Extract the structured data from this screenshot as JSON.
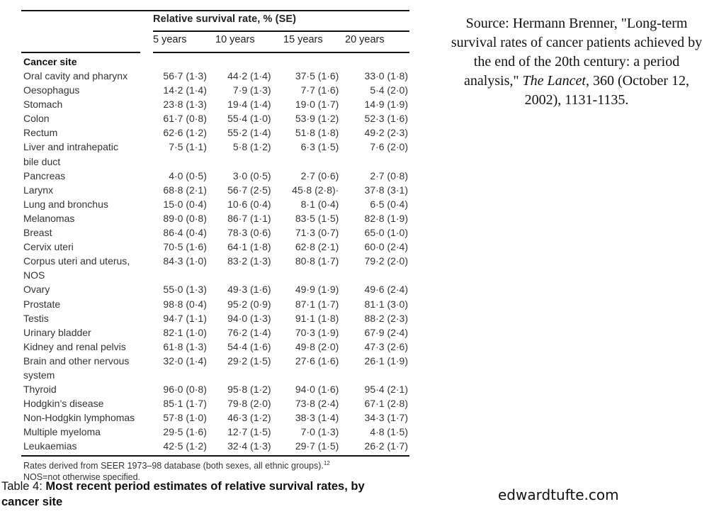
{
  "table": {
    "spanner": "Relative survival rate, % (SE)",
    "row_header": "Cancer site",
    "columns": [
      "5 years",
      "10 years",
      "15 years",
      "20 years"
    ],
    "rows": [
      {
        "site": "Oral cavity and pharynx",
        "site2": "",
        "v": [
          "56·7 (1·3)",
          "44·2 (1·4)",
          "37·5 (1·6)",
          "33·0 (1·8)"
        ]
      },
      {
        "site": "Oesophagus",
        "site2": "",
        "v": [
          "14·2 (1·4)",
          "7·9 (1·3)",
          "7·7 (1·6)",
          "5·4 (2·0)"
        ]
      },
      {
        "site": "Stomach",
        "site2": "",
        "v": [
          "23·8 (1·3)",
          "19·4 (1·4)",
          "19·0 (1·7)",
          "14·9 (1·9)"
        ]
      },
      {
        "site": "Colon",
        "site2": "",
        "v": [
          "61·7 (0·8)",
          "55·4 (1·0)",
          "53·9 (1·2)",
          "52·3 (1·6)"
        ]
      },
      {
        "site": "Rectum",
        "site2": "",
        "v": [
          "62·6 (1·2)",
          "55·2 (1·4)",
          "51·8 (1·8)",
          "49·2 (2·3)"
        ]
      },
      {
        "site": "Liver and intrahepatic",
        "site2": "bile duct",
        "v": [
          "7·5 (1·1)",
          "5·8 (1·2)",
          "6·3 (1·5)",
          "7·6 (2·0)"
        ]
      },
      {
        "site": "Pancreas",
        "site2": "",
        "v": [
          "4·0 (0·5)",
          "3·0 (0·5)",
          "2·7 (0·6)",
          "2·7 (0·8)"
        ]
      },
      {
        "site": "Larynx",
        "site2": "",
        "v": [
          "68·8 (2·1)",
          "56·7 (2·5)",
          "45·8 (2·8)·",
          "37·8 (3·1)"
        ]
      },
      {
        "site": "Lung and bronchus",
        "site2": "",
        "v": [
          "15·0 (0·4)",
          "10·6 (0·4)",
          "8·1 (0·4)",
          "6·5 (0·4)"
        ]
      },
      {
        "site": "Melanomas",
        "site2": "",
        "v": [
          "89·0 (0·8)",
          "86·7 (1·1)",
          "83·5 (1·5)",
          "82·8 (1·9)"
        ]
      },
      {
        "site": "Breast",
        "site2": "",
        "v": [
          "86·4 (0·4)",
          "78·3 (0·6)",
          "71·3 (0·7)",
          "65·0 (1·0)"
        ]
      },
      {
        "site": "Cervix uteri",
        "site2": "",
        "v": [
          "70·5 (1·6)",
          "64·1 (1·8)",
          "62·8 (2·1)",
          "60·0 (2·4)"
        ]
      },
      {
        "site": "Corpus uteri and uterus,",
        "site2": "NOS",
        "v": [
          "84·3 (1·0)",
          "83·2 (1·3)",
          "80·8 (1·7)",
          "79·2 (2·0)"
        ]
      },
      {
        "site": "Ovary",
        "site2": "",
        "v": [
          "55·0 (1·3)",
          "49·3 (1·6)",
          "49·9 (1·9)",
          "49·6 (2·4)"
        ]
      },
      {
        "site": "Prostate",
        "site2": "",
        "v": [
          "98·8 (0·4)",
          "95·2 (0·9)",
          "87·1 (1·7)",
          "81·1 (3·0)"
        ]
      },
      {
        "site": "Testis",
        "site2": "",
        "v": [
          "94·7 (1·1)",
          "94·0 (1·3)",
          "91·1 (1·8)",
          "88·2 (2·3)"
        ]
      },
      {
        "site": "Urinary bladder",
        "site2": "",
        "v": [
          "82·1 (1·0)",
          "76·2 (1·4)",
          "70·3 (1·9)",
          "67·9 (2·4)"
        ]
      },
      {
        "site": "Kidney and renal pelvis",
        "site2": "",
        "v": [
          "61·8 (1·3)",
          "54·4 (1·6)",
          "49·8 (2·0)",
          "47·3 (2·6)"
        ]
      },
      {
        "site": "Brain and other nervous",
        "site2": "system",
        "v": [
          "32·0 (1·4)",
          "29·2 (1·5)",
          "27·6 (1·6)",
          "26·1 (1·9)"
        ]
      },
      {
        "site": "Thyroid",
        "site2": "",
        "v": [
          "96·0 (0·8)",
          "95·8 (1·2)",
          "94·0 (1·6)",
          "95·4 (2·1)"
        ]
      },
      {
        "site": "Hodgkin’s disease",
        "site2": "",
        "v": [
          "85·1 (1·7)",
          "79·8 (2·0)",
          "73·8 (2·4)",
          "67·1 (2·8)"
        ]
      },
      {
        "site": "Non-Hodgkin lymphomas",
        "site2": "",
        "v": [
          "57·8 (1·0)",
          "46·3 (1·2)",
          "38·3 (1·4)",
          "34·3 (1·7)"
        ]
      },
      {
        "site": "Multiple myeloma",
        "site2": "",
        "v": [
          "29·5 (1·6)",
          "12·7 (1·5)",
          "7·0 (1·3)",
          "4·8 (1·5)"
        ]
      },
      {
        "site": "Leukaemias",
        "site2": "",
        "v": [
          "42·5 (1·2)",
          "32·4 (1·3)",
          "29·7 (1·5)",
          "26·2 (1·7)"
        ]
      }
    ],
    "note1": "Rates derived from SEER 1973–98 database (both sexes, all ethnic groups).",
    "note1_sup": "12",
    "note2": "NOS=not otherwise specified."
  },
  "caption": {
    "prefix": "Table 4: ",
    "title": "Most recent period estimates of relative survival rates, by cancer site"
  },
  "source": {
    "before_italic": "Source: Hermann Brenner, \"Long-term survival rates of cancer patients achieved by the end of the 20th century: a period analysis,\" ",
    "italic": "The Lancet",
    "after_italic": ", 360 (October 12, 2002), 1131-1135."
  },
  "site_credit": "edwardtufte.com"
}
